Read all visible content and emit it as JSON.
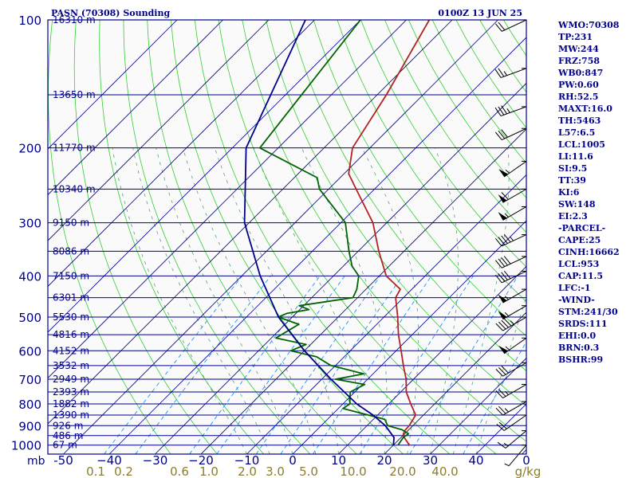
{
  "chart_data": {
    "type": "skew-t",
    "title": "PASN (70308) Sounding",
    "valid_time": "0100Z 13 JUN 25",
    "y_unit_label": "mb",
    "pressure_ticks": [
      100,
      200,
      300,
      400,
      500,
      600,
      700,
      800,
      900,
      1000
    ],
    "pressure_range": [
      1050,
      100
    ],
    "temperature_ticks": [
      -50,
      -40,
      -30,
      -20,
      -10,
      0,
      10,
      20,
      30,
      40
    ],
    "temperature_tick_labels": [
      "-50",
      "−40",
      "−30",
      "−20",
      "−10",
      "0",
      "10",
      "20",
      "30",
      "40"
    ],
    "mixing_ratio_labels": [
      "0.1",
      "0.2",
      "0.6",
      "1.0",
      "2.0",
      "3.0",
      "5.0",
      "10.0",
      "20.0",
      "40.0"
    ],
    "mixing_ratio_unit": "g/kg",
    "wind_axis_zero": "0",
    "height_levels": [
      {
        "p": 100,
        "label": "16310 m"
      },
      {
        "p": 150,
        "label": "13650 m"
      },
      {
        "p": 200,
        "label": "11770 m"
      },
      {
        "p": 250,
        "label": "10340 m"
      },
      {
        "p": 300,
        "label": "9150 m"
      },
      {
        "p": 350,
        "label": "8086 m"
      },
      {
        "p": 400,
        "label": "7150 m"
      },
      {
        "p": 450,
        "label": "6301 m"
      },
      {
        "p": 500,
        "label": "5530 m"
      },
      {
        "p": 550,
        "label": "4816 m"
      },
      {
        "p": 600,
        "label": "4152 m"
      },
      {
        "p": 650,
        "label": "3532 m"
      },
      {
        "p": 700,
        "label": "2949 m"
      },
      {
        "p": 750,
        "label": "2393 m"
      },
      {
        "p": 800,
        "label": "1882 m"
      },
      {
        "p": 850,
        "label": "1390 m"
      },
      {
        "p": 900,
        "label": "926 m"
      },
      {
        "p": 950,
        "label": "486 m"
      },
      {
        "p": 1000,
        "label": "67 m"
      }
    ],
    "series": [
      {
        "color": "#b22222",
        "points": [
          [
            1000,
            23.5
          ],
          [
            950,
            20
          ],
          [
            925,
            19.3
          ],
          [
            900,
            19.2
          ],
          [
            850,
            18.3
          ],
          [
            800,
            14.8
          ],
          [
            750,
            11.2
          ],
          [
            700,
            8.4
          ],
          [
            650,
            4.8
          ],
          [
            600,
            1.1
          ],
          [
            550,
            -3
          ],
          [
            500,
            -7
          ],
          [
            450,
            -11.7
          ],
          [
            430,
            -12.5
          ],
          [
            400,
            -18.5
          ],
          [
            350,
            -25.5
          ],
          [
            300,
            -33
          ],
          [
            250,
            -44
          ],
          [
            230,
            -49
          ],
          [
            200,
            -53.8
          ],
          [
            150,
            -58
          ],
          [
            100,
            -65
          ]
        ]
      },
      {
        "color": "#006400",
        "points": [
          [
            1000,
            21
          ],
          [
            960,
            20.5
          ],
          [
            940,
            20.8
          ],
          [
            920,
            18.5
          ],
          [
            900,
            14.5
          ],
          [
            870,
            12.5
          ],
          [
            850,
            8
          ],
          [
            820,
            1
          ],
          [
            800,
            1.5
          ],
          [
            780,
            0.5
          ],
          [
            750,
            -1
          ],
          [
            720,
            0.5
          ],
          [
            700,
            -7
          ],
          [
            680,
            -2
          ],
          [
            650,
            -11
          ],
          [
            620,
            -16
          ],
          [
            600,
            -23
          ],
          [
            580,
            -21
          ],
          [
            560,
            -29
          ],
          [
            520,
            -27
          ],
          [
            500,
            -33
          ],
          [
            490,
            -32
          ],
          [
            480,
            -28
          ],
          [
            470,
            -31
          ],
          [
            460,
            -26
          ],
          [
            450,
            -21
          ],
          [
            430,
            -22
          ],
          [
            400,
            -24.5
          ],
          [
            380,
            -28
          ],
          [
            350,
            -32
          ],
          [
            300,
            -39
          ],
          [
            250,
            -52
          ],
          [
            235,
            -55
          ],
          [
            200,
            -74
          ],
          [
            100,
            -80
          ]
        ]
      },
      {
        "color": "#00008b",
        "points": [
          [
            1000,
            20
          ],
          [
            960,
            18.5
          ],
          [
            900,
            14
          ],
          [
            850,
            9
          ],
          [
            800,
            3
          ],
          [
            700,
            -8
          ],
          [
            600,
            -20
          ],
          [
            500,
            -33
          ],
          [
            400,
            -46
          ],
          [
            300,
            -61
          ],
          [
            200,
            -77
          ],
          [
            100,
            -92
          ]
        ]
      }
    ],
    "wind_barbs": [
      {
        "p": 100,
        "dir": 245,
        "spd": 20
      },
      {
        "p": 130,
        "dir": 250,
        "spd": 25
      },
      {
        "p": 160,
        "dir": 250,
        "spd": 35
      },
      {
        "p": 180,
        "dir": 245,
        "spd": 30
      },
      {
        "p": 215,
        "dir": 235,
        "spd": 55
      },
      {
        "p": 250,
        "dir": 240,
        "spd": 60
      },
      {
        "p": 275,
        "dir": 240,
        "spd": 55
      },
      {
        "p": 320,
        "dir": 245,
        "spd": 45
      },
      {
        "p": 360,
        "dir": 245,
        "spd": 40
      },
      {
        "p": 390,
        "dir": 245,
        "spd": 40
      },
      {
        "p": 430,
        "dir": 240,
        "spd": 55
      },
      {
        "p": 470,
        "dir": 240,
        "spd": 55
      },
      {
        "p": 500,
        "dir": 240,
        "spd": 45
      },
      {
        "p": 560,
        "dir": 235,
        "spd": 55
      },
      {
        "p": 640,
        "dir": 240,
        "spd": 30
      },
      {
        "p": 720,
        "dir": 240,
        "spd": 25
      },
      {
        "p": 790,
        "dir": 240,
        "spd": 25
      },
      {
        "p": 850,
        "dir": 235,
        "spd": 20
      },
      {
        "p": 925,
        "dir": 230,
        "spd": 15
      },
      {
        "p": 1000,
        "dir": 220,
        "spd": 5
      }
    ],
    "colors": {
      "frame": "#00008b",
      "isobar": "#00008b",
      "isotherm": "#00008b",
      "dry_adiabat": "#32cd32",
      "moist_adiabat": "#2e8b57",
      "mixing_ratio": "#1e90ff",
      "mixing_label": "#8b7d2a",
      "wind": "#000000"
    }
  },
  "stats": [
    "WMO:70308",
    "TP:231",
    "MW:244",
    "FRZ:758",
    "WB0:847",
    "PW:0.60",
    "RH:52.5",
    "MAXT:16.0",
    "TH:5463",
    "L57:6.5",
    "LCL:1005",
    "LI:11.6",
    "SI:9.5",
    "TT:39",
    "KI:6",
    "SW:148",
    "EI:2.3",
    "-PARCEL-",
    "CAPE:25",
    "CINH:16662",
    "LCL:953",
    "CAP:11.5",
    "LFC:-1",
    "-WIND-",
    "STM:241/30",
    "SRDS:111",
    "EHI:0.0",
    "BRN:0.3",
    "BSHR:99"
  ]
}
